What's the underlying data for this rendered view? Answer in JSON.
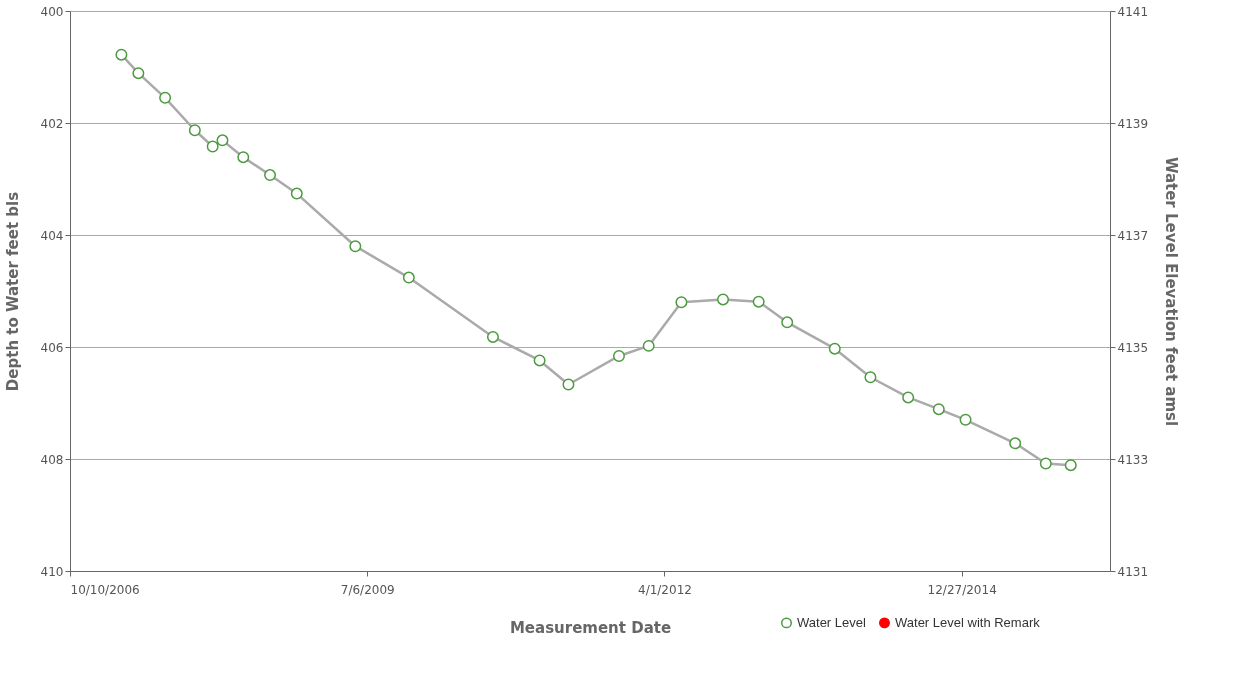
{
  "chart_data": {
    "type": "line",
    "xlabel": "Measurement Date",
    "ylabel": "Depth to Water feet bls",
    "y2label": "Water Level Elevation feet amsl",
    "x": [
      "2007-04-01",
      "2007-05-28",
      "2007-08-26",
      "2007-12-04",
      "2008-02-02",
      "2008-03-06",
      "2008-05-15",
      "2008-08-13",
      "2008-11-11",
      "2009-05-27",
      "2009-11-23",
      "2010-09-02",
      "2011-02-06",
      "2011-05-14",
      "2011-10-31",
      "2012-02-08",
      "2012-05-28",
      "2012-10-15",
      "2013-02-12",
      "2013-05-19",
      "2013-10-26",
      "2014-02-23",
      "2014-06-30",
      "2014-10-11",
      "2015-01-09",
      "2015-06-25",
      "2015-10-06",
      "2015-12-29"
    ],
    "series": [
      {
        "name": "Water Level",
        "color": "#4c9a40",
        "values": [
          400.78,
          401.11,
          401.55,
          402.13,
          402.42,
          402.31,
          402.61,
          402.93,
          403.26,
          404.2,
          404.76,
          405.82,
          406.24,
          406.67,
          406.16,
          405.98,
          405.2,
          405.15,
          405.19,
          405.56,
          406.03,
          406.54,
          406.9,
          407.11,
          407.3,
          407.72,
          408.08,
          408.11
        ]
      },
      {
        "name": "Water Level with Remark",
        "color": "#ff0000",
        "values": [
          null,
          null,
          null,
          null,
          null,
          null,
          null,
          null,
          null,
          null,
          null,
          null,
          null,
          null,
          null,
          null,
          null,
          null,
          null,
          null,
          null,
          null,
          null,
          null,
          null,
          null,
          null,
          null
        ]
      }
    ],
    "xlim": [
      "2006-10-10",
      "2016-05-09"
    ],
    "xticks": [
      {
        "value": "2006-10-10",
        "label": "10/10/2006"
      },
      {
        "value": "2009-07-06",
        "label": "7/6/2009"
      },
      {
        "value": "2012-04-01",
        "label": "4/1/2012"
      },
      {
        "value": "2014-12-27",
        "label": "12/27/2014"
      }
    ],
    "ylim": [
      410,
      400
    ],
    "yticks": [
      400,
      402,
      404,
      406,
      408,
      410
    ],
    "y2lim": [
      4131,
      4141
    ],
    "y2ticks": [
      4131,
      4133,
      4135,
      4137,
      4139,
      4141
    ],
    "grid": "y",
    "legend": "bottom right",
    "marker": "circle",
    "line_style": "solid"
  }
}
